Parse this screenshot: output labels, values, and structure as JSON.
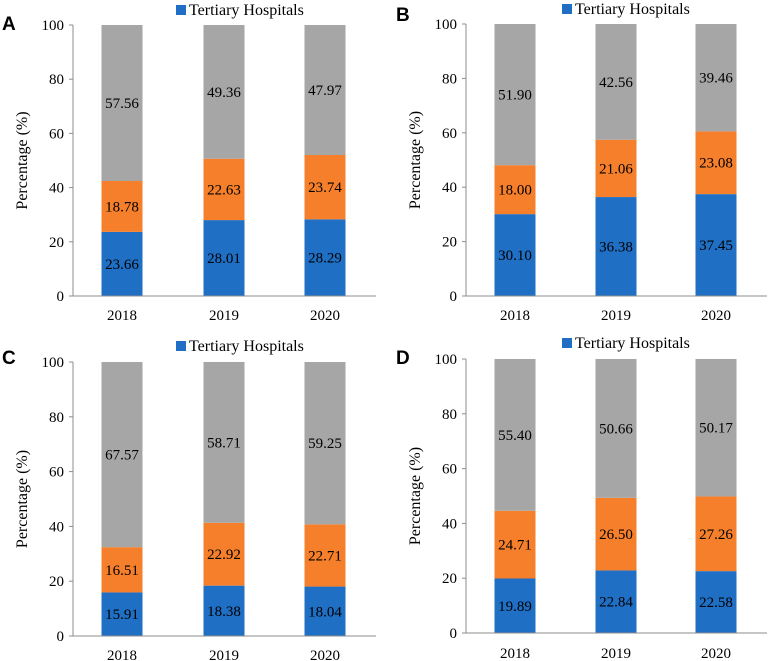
{
  "colors": {
    "tertiary": "#1f6fc5",
    "secondary": "#f57f2a",
    "primary": "#a6a6a6",
    "axis": "#8c8c8c"
  },
  "chart_data": [
    {
      "panel": "A",
      "type": "bar",
      "stacked": true,
      "categories": [
        "2018",
        "2019",
        "2020"
      ],
      "ylabel": "Percentage (%)",
      "ylim": [
        0,
        100
      ],
      "yticks": [
        "0",
        "20",
        "40",
        "60",
        "80",
        "100"
      ],
      "legend": [
        "Tertiary Hospitals"
      ],
      "series": [
        {
          "name": "Tertiary Hospitals",
          "values": [
            23.66,
            28.01,
            28.29
          ],
          "labels": [
            "23.66",
            "28.01",
            "28.29"
          ]
        },
        {
          "name": "",
          "values": [
            18.78,
            22.63,
            23.74
          ],
          "labels": [
            "18.78",
            "22.63",
            "23.74"
          ]
        },
        {
          "name": "",
          "values": [
            57.56,
            49.36,
            47.97
          ],
          "labels": [
            "57.56",
            "49.36",
            "47.97"
          ]
        }
      ]
    },
    {
      "panel": "B",
      "type": "bar",
      "stacked": true,
      "categories": [
        "2018",
        "2019",
        "2020"
      ],
      "ylabel": "Percentage (%)",
      "ylim": [
        0,
        100
      ],
      "yticks": [
        "0",
        "20",
        "40",
        "60",
        "80",
        "100"
      ],
      "legend": [
        "Tertiary Hospitals"
      ],
      "series": [
        {
          "name": "Tertiary Hospitals",
          "values": [
            30.1,
            36.38,
            37.45
          ],
          "labels": [
            "30.10",
            "36.38",
            "37.45"
          ]
        },
        {
          "name": "",
          "values": [
            18.0,
            21.06,
            23.08
          ],
          "labels": [
            "18.00",
            "21.06",
            "23.08"
          ]
        },
        {
          "name": "",
          "values": [
            51.9,
            42.56,
            39.46
          ],
          "labels": [
            "51.90",
            "42.56",
            "39.46"
          ]
        }
      ]
    },
    {
      "panel": "C",
      "type": "bar",
      "stacked": true,
      "categories": [
        "2018",
        "2019",
        "2020"
      ],
      "ylabel": "Percentage (%)",
      "ylim": [
        0,
        100
      ],
      "yticks": [
        "0",
        "20",
        "40",
        "60",
        "80",
        "100"
      ],
      "legend": [
        "Tertiary Hospitals"
      ],
      "series": [
        {
          "name": "Tertiary Hospitals",
          "values": [
            15.91,
            18.38,
            18.04
          ],
          "labels": [
            "15.91",
            "18.38",
            "18.04"
          ]
        },
        {
          "name": "",
          "values": [
            16.51,
            22.92,
            22.71
          ],
          "labels": [
            "16.51",
            "22.92",
            "22.71"
          ]
        },
        {
          "name": "",
          "values": [
            67.57,
            58.71,
            59.25
          ],
          "labels": [
            "67.57",
            "58.71",
            "59.25"
          ]
        }
      ]
    },
    {
      "panel": "D",
      "type": "bar",
      "stacked": true,
      "categories": [
        "2018",
        "2019",
        "2020"
      ],
      "ylabel": "Percentage (%)",
      "ylim": [
        0,
        100
      ],
      "yticks": [
        "0",
        "20",
        "40",
        "60",
        "80",
        "100"
      ],
      "legend": [
        "Tertiary Hospitals"
      ],
      "series": [
        {
          "name": "Tertiary Hospitals",
          "values": [
            19.89,
            22.84,
            22.58
          ],
          "labels": [
            "19.89",
            "22.84",
            "22.58"
          ]
        },
        {
          "name": "",
          "values": [
            24.71,
            26.5,
            27.26
          ],
          "labels": [
            "24.71",
            "26.50",
            "27.26"
          ]
        },
        {
          "name": "",
          "values": [
            55.4,
            50.66,
            50.17
          ],
          "labels": [
            "55.40",
            "50.66",
            "50.17"
          ]
        }
      ]
    }
  ]
}
